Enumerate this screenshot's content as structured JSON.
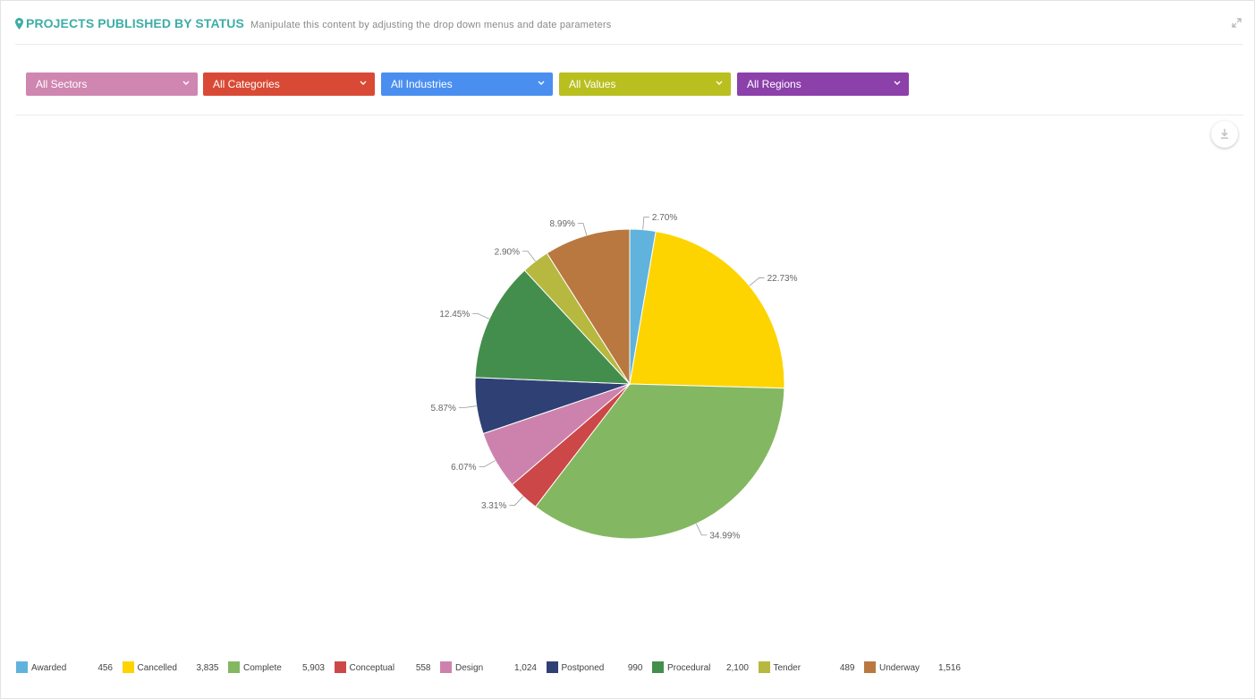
{
  "header": {
    "title": "PROJECTS PUBLISHED BY STATUS",
    "subtitle": "Manipulate this content by adjusting the drop down menus and date parameters"
  },
  "filters": [
    {
      "label": "All Sectors",
      "color": "#cf86b1"
    },
    {
      "label": "All Categories",
      "color": "#d94a36"
    },
    {
      "label": "All Industries",
      "color": "#4a8ff0"
    },
    {
      "label": "All Values",
      "color": "#b9bf1f"
    },
    {
      "label": "All Regions",
      "color": "#8b40aa"
    }
  ],
  "icons": {
    "pin": "map-pin-icon",
    "expand": "expand-icon",
    "download": "download-icon",
    "chevron": "chevron-down-icon"
  },
  "chart_data": {
    "type": "pie",
    "title": "",
    "categories": [
      "Awarded",
      "Cancelled",
      "Complete",
      "Conceptual",
      "Design",
      "Postponed",
      "Procedural",
      "Tender",
      "Underway"
    ],
    "values": [
      456,
      3835,
      5903,
      558,
      1024,
      990,
      2100,
      489,
      1516
    ],
    "value_labels": [
      "456",
      "3,835",
      "5,903",
      "558",
      "1,024",
      "990",
      "2,100",
      "489",
      "1,516"
    ],
    "percent_labels": [
      "2.70%",
      "22.73%",
      "34.99%",
      "3.31%",
      "6.07%",
      "5.87%",
      "12.45%",
      "2.90%",
      "8.99%"
    ],
    "colors": [
      "#5fb3dc",
      "#fdd400",
      "#84b761",
      "#cc4748",
      "#cd82ad",
      "#2f4074",
      "#448e4d",
      "#b7b83f",
      "#b9783f"
    ],
    "legend_position": "bottom-left"
  }
}
